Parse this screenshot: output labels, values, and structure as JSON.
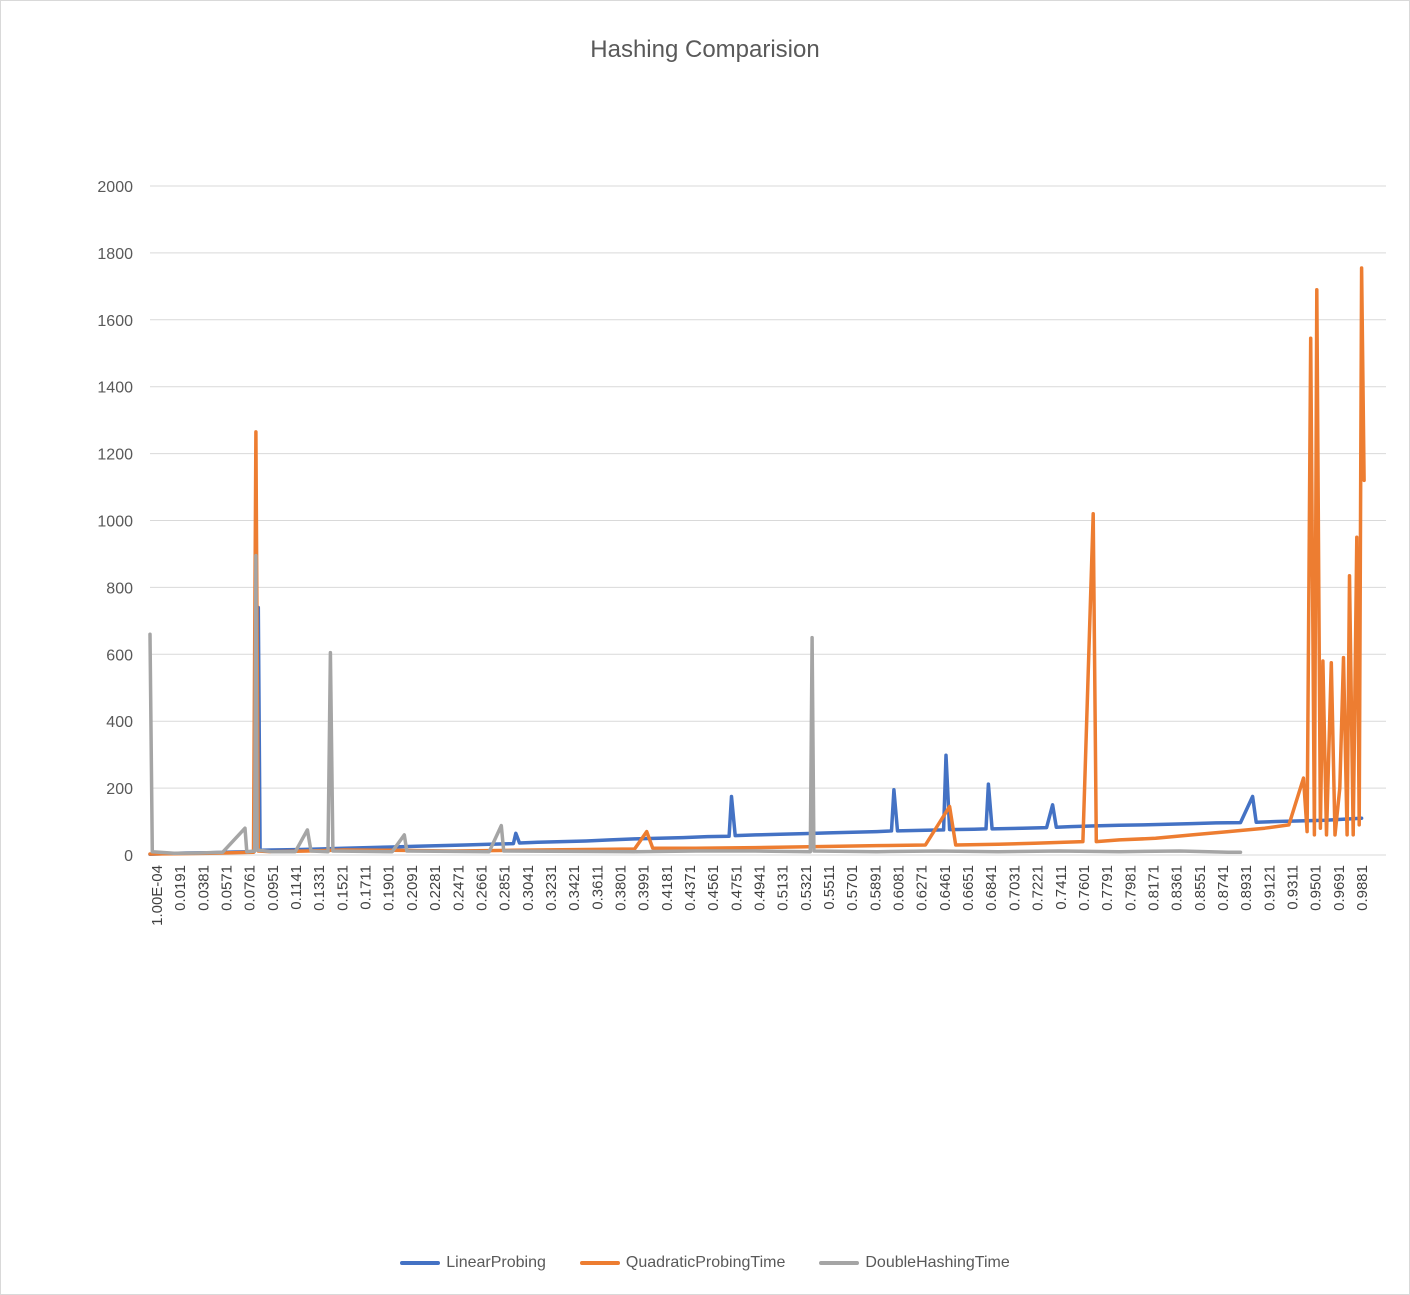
{
  "chart_data": {
    "type": "line",
    "title": "Hashing Comparision",
    "xlabel": "",
    "ylabel": "",
    "ylim": [
      0,
      2000
    ],
    "yticks": [
      "0",
      "200",
      "400",
      "600",
      "800",
      "1000",
      "1200",
      "1400",
      "1600",
      "1800",
      "2000"
    ],
    "xtick_labels": [
      "1.00E-04",
      "0.0191",
      "0.0381",
      "0.0571",
      "0.0761",
      "0.0951",
      "0.1141",
      "0.1331",
      "0.1521",
      "0.1711",
      "0.1901",
      "0.2091",
      "0.2281",
      "0.2471",
      "0.2661",
      "0.2851",
      "0.3041",
      "0.3231",
      "0.3421",
      "0.3611",
      "0.3801",
      "0.3991",
      "0.4181",
      "0.4371",
      "0.4561",
      "0.4751",
      "0.4941",
      "0.5131",
      "0.5321",
      "0.5511",
      "0.5701",
      "0.5891",
      "0.6081",
      "0.6271",
      "0.6461",
      "0.6651",
      "0.6841",
      "0.7031",
      "0.7221",
      "0.7411",
      "0.7601",
      "0.7791",
      "0.7981",
      "0.8171",
      "0.8361",
      "0.8551",
      "0.8741",
      "0.8931",
      "0.9121",
      "0.9311",
      "0.9501",
      "0.9691",
      "0.9881"
    ],
    "grid": true,
    "legend_position": "bottom",
    "series": [
      {
        "name": "LinearProbing",
        "color": "#4472C4",
        "points": [
          [
            0.0001,
            2
          ],
          [
            0.01,
            4
          ],
          [
            0.03,
            6
          ],
          [
            0.05,
            7
          ],
          [
            0.07,
            9
          ],
          [
            0.086,
            10
          ],
          [
            0.0895,
            740
          ],
          [
            0.091,
            14
          ],
          [
            0.1,
            15
          ],
          [
            0.12,
            16
          ],
          [
            0.14,
            18
          ],
          [
            0.16,
            20
          ],
          [
            0.18,
            22
          ],
          [
            0.2,
            24
          ],
          [
            0.22,
            26
          ],
          [
            0.24,
            28
          ],
          [
            0.26,
            30
          ],
          [
            0.28,
            32
          ],
          [
            0.3,
            34
          ],
          [
            0.302,
            65
          ],
          [
            0.305,
            36
          ],
          [
            0.32,
            38
          ],
          [
            0.34,
            40
          ],
          [
            0.36,
            42
          ],
          [
            0.38,
            45
          ],
          [
            0.4,
            48
          ],
          [
            0.42,
            50
          ],
          [
            0.44,
            52
          ],
          [
            0.46,
            55
          ],
          [
            0.478,
            56
          ],
          [
            0.48,
            175
          ],
          [
            0.483,
            58
          ],
          [
            0.5,
            60
          ],
          [
            0.52,
            62
          ],
          [
            0.54,
            64
          ],
          [
            0.56,
            66
          ],
          [
            0.58,
            68
          ],
          [
            0.6,
            70
          ],
          [
            0.612,
            72
          ],
          [
            0.614,
            195
          ],
          [
            0.617,
            72
          ],
          [
            0.64,
            74
          ],
          [
            0.655,
            75
          ],
          [
            0.657,
            298
          ],
          [
            0.66,
            76
          ],
          [
            0.68,
            77
          ],
          [
            0.69,
            78
          ],
          [
            0.692,
            212
          ],
          [
            0.695,
            78
          ],
          [
            0.72,
            80
          ],
          [
            0.74,
            82
          ],
          [
            0.745,
            150
          ],
          [
            0.748,
            83
          ],
          [
            0.76,
            85
          ],
          [
            0.78,
            87
          ],
          [
            0.8,
            89
          ],
          [
            0.82,
            90
          ],
          [
            0.84,
            92
          ],
          [
            0.86,
            94
          ],
          [
            0.88,
            96
          ],
          [
            0.9,
            97
          ],
          [
            0.91,
            175
          ],
          [
            0.913,
            98
          ],
          [
            0.93,
            100
          ],
          [
            0.95,
            102
          ],
          [
            0.97,
            104
          ],
          [
            0.99,
            108
          ],
          [
            1.0,
            110
          ]
        ]
      },
      {
        "name": "QuadraticProbingTime",
        "color": "#ED7D31",
        "points": [
          [
            0.0001,
            3
          ],
          [
            0.02,
            4
          ],
          [
            0.05,
            5
          ],
          [
            0.0855,
            8
          ],
          [
            0.0875,
            1265
          ],
          [
            0.0895,
            12
          ],
          [
            0.1,
            10
          ],
          [
            0.13,
            12
          ],
          [
            0.16,
            15
          ],
          [
            0.2,
            14
          ],
          [
            0.25,
            12
          ],
          [
            0.3,
            14
          ],
          [
            0.35,
            16
          ],
          [
            0.4,
            18
          ],
          [
            0.41,
            70
          ],
          [
            0.415,
            20
          ],
          [
            0.45,
            20
          ],
          [
            0.5,
            22
          ],
          [
            0.55,
            25
          ],
          [
            0.6,
            28
          ],
          [
            0.64,
            30
          ],
          [
            0.66,
            145
          ],
          [
            0.665,
            30
          ],
          [
            0.7,
            32
          ],
          [
            0.73,
            35
          ],
          [
            0.77,
            40
          ],
          [
            0.7785,
            1020
          ],
          [
            0.781,
            40
          ],
          [
            0.8,
            45
          ],
          [
            0.83,
            50
          ],
          [
            0.86,
            60
          ],
          [
            0.89,
            70
          ],
          [
            0.92,
            80
          ],
          [
            0.94,
            90
          ],
          [
            0.952,
            230
          ],
          [
            0.955,
            70
          ],
          [
            0.958,
            1545
          ],
          [
            0.961,
            60
          ],
          [
            0.963,
            1690
          ],
          [
            0.966,
            80
          ],
          [
            0.968,
            580
          ],
          [
            0.971,
            60
          ],
          [
            0.975,
            575
          ],
          [
            0.978,
            60
          ],
          [
            0.982,
            200
          ],
          [
            0.985,
            590
          ],
          [
            0.988,
            60
          ],
          [
            0.99,
            835
          ],
          [
            0.993,
            60
          ],
          [
            0.996,
            950
          ],
          [
            0.998,
            90
          ],
          [
            1.0,
            1755
          ],
          [
            1.002,
            1120
          ]
        ]
      },
      {
        "name": "DoubleHashingTime",
        "color": "#A5A5A5",
        "points": [
          [
            0.0001,
            660
          ],
          [
            0.002,
            10
          ],
          [
            0.02,
            5
          ],
          [
            0.04,
            6
          ],
          [
            0.06,
            8
          ],
          [
            0.0785,
            80
          ],
          [
            0.08,
            10
          ],
          [
            0.0865,
            12
          ],
          [
            0.0875,
            895
          ],
          [
            0.0885,
            15
          ],
          [
            0.1,
            10
          ],
          [
            0.12,
            10
          ],
          [
            0.13,
            75
          ],
          [
            0.133,
            12
          ],
          [
            0.147,
            10
          ],
          [
            0.149,
            605
          ],
          [
            0.151,
            12
          ],
          [
            0.2,
            10
          ],
          [
            0.21,
            60
          ],
          [
            0.212,
            12
          ],
          [
            0.28,
            10
          ],
          [
            0.29,
            88
          ],
          [
            0.292,
            12
          ],
          [
            0.4,
            10
          ],
          [
            0.45,
            12
          ],
          [
            0.5,
            12
          ],
          [
            0.545,
            10
          ],
          [
            0.5465,
            650
          ],
          [
            0.548,
            12
          ],
          [
            0.6,
            10
          ],
          [
            0.65,
            12
          ],
          [
            0.7,
            10
          ],
          [
            0.75,
            12
          ],
          [
            0.8,
            10
          ],
          [
            0.85,
            12
          ],
          [
            0.89,
            8
          ],
          [
            0.9,
            8
          ]
        ]
      }
    ]
  }
}
